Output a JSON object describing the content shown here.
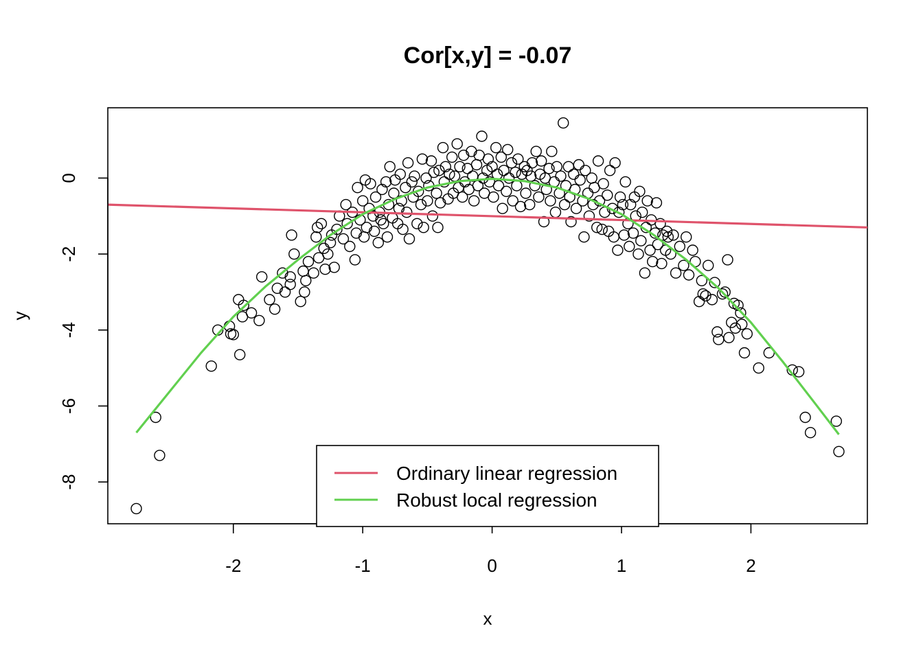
{
  "chart_data": {
    "type": "scatter",
    "title": "Cor[x,y] = -0.07",
    "xlabel": "x",
    "ylabel": "y",
    "xlim": [
      -2.97,
      2.9
    ],
    "ylim": [
      -9.1,
      1.85
    ],
    "xticks": [
      -2,
      -1,
      0,
      1,
      2
    ],
    "yticks": [
      0,
      -2,
      -4,
      -6,
      -8
    ],
    "xtick_labels": [
      "-2",
      "-1",
      "0",
      "1",
      "2"
    ],
    "ytick_labels": [
      "0",
      "-2",
      "-4",
      "-6",
      "-8"
    ],
    "grid": false,
    "legend": {
      "position": "bottom-center",
      "entries": [
        {
          "label": "Ordinary linear regression",
          "color": "#DF536B"
        },
        {
          "label": "Robust local regression",
          "color": "#61D04F"
        }
      ]
    },
    "points_color": "#000000",
    "series": [
      {
        "kind": "scatter",
        "points": [
          [
            -2.75,
            -8.7
          ],
          [
            -2.6,
            -6.3
          ],
          [
            -2.57,
            -7.3
          ],
          [
            -2.17,
            -4.95
          ],
          [
            -2.12,
            -4.0
          ],
          [
            -2.03,
            -3.9
          ],
          [
            -2.02,
            -4.1
          ],
          [
            -2.0,
            -4.12
          ],
          [
            -1.96,
            -3.2
          ],
          [
            -1.95,
            -4.65
          ],
          [
            -1.92,
            -3.35
          ],
          [
            -1.93,
            -3.65
          ],
          [
            -1.86,
            -3.55
          ],
          [
            -1.8,
            -3.75
          ],
          [
            -1.78,
            -2.6
          ],
          [
            -1.72,
            -3.2
          ],
          [
            -1.68,
            -3.45
          ],
          [
            -1.66,
            -2.9
          ],
          [
            -1.62,
            -2.5
          ],
          [
            -1.6,
            -3.0
          ],
          [
            -1.56,
            -2.6
          ],
          [
            -1.56,
            -2.8
          ],
          [
            -1.55,
            -1.5
          ],
          [
            -1.53,
            -2.0
          ],
          [
            -1.48,
            -3.25
          ],
          [
            -1.46,
            -2.45
          ],
          [
            -1.45,
            -3.0
          ],
          [
            -1.44,
            -2.7
          ],
          [
            -1.42,
            -2.2
          ],
          [
            -1.38,
            -2.5
          ],
          [
            -1.36,
            -1.55
          ],
          [
            -1.35,
            -1.3
          ],
          [
            -1.34,
            -2.1
          ],
          [
            -1.32,
            -1.2
          ],
          [
            -1.3,
            -1.85
          ],
          [
            -1.29,
            -2.4
          ],
          [
            -1.27,
            -2.0
          ],
          [
            -1.25,
            -1.7
          ],
          [
            -1.24,
            -1.5
          ],
          [
            -1.22,
            -2.35
          ],
          [
            -1.2,
            -1.35
          ],
          [
            -1.18,
            -1.0
          ],
          [
            -1.15,
            -1.6
          ],
          [
            -1.13,
            -0.7
          ],
          [
            -1.12,
            -1.2
          ],
          [
            -1.1,
            -1.8
          ],
          [
            -1.08,
            -0.9
          ],
          [
            -1.06,
            -2.15
          ],
          [
            -1.05,
            -1.45
          ],
          [
            -1.04,
            -0.25
          ],
          [
            -1.02,
            -1.1
          ],
          [
            -1.0,
            -0.6
          ],
          [
            -0.99,
            -1.55
          ],
          [
            -0.98,
            -0.05
          ],
          [
            -0.97,
            -1.3
          ],
          [
            -0.95,
            -0.8
          ],
          [
            -0.94,
            -0.15
          ],
          [
            -0.92,
            -1.0
          ],
          [
            -0.91,
            -1.4
          ],
          [
            -0.9,
            -0.5
          ],
          [
            -0.88,
            -1.7
          ],
          [
            -0.87,
            -0.9
          ],
          [
            -0.86,
            -1.1
          ],
          [
            -0.85,
            -0.3
          ],
          [
            -0.84,
            -1.2
          ],
          [
            -0.82,
            -0.1
          ],
          [
            -0.81,
            -1.55
          ],
          [
            -0.8,
            -0.7
          ],
          [
            -0.79,
            0.3
          ],
          [
            -0.77,
            -1.05
          ],
          [
            -0.76,
            -0.4
          ],
          [
            -0.75,
            -0.05
          ],
          [
            -0.73,
            -1.2
          ],
          [
            -0.72,
            -0.8
          ],
          [
            -0.71,
            0.1
          ],
          [
            -0.7,
            -0.6
          ],
          [
            -0.69,
            -1.35
          ],
          [
            -0.67,
            -0.25
          ],
          [
            -0.66,
            -0.9
          ],
          [
            -0.65,
            0.4
          ],
          [
            -0.64,
            -1.6
          ],
          [
            -0.62,
            -0.1
          ],
          [
            -0.61,
            -0.5
          ],
          [
            -0.6,
            0.05
          ],
          [
            -0.58,
            -1.2
          ],
          [
            -0.57,
            -0.35
          ],
          [
            -0.55,
            -0.7
          ],
          [
            -0.54,
            0.5
          ],
          [
            -0.53,
            -1.3
          ],
          [
            -0.51,
            0.0
          ],
          [
            -0.5,
            -0.6
          ],
          [
            -0.49,
            -0.2
          ],
          [
            -0.47,
            0.45
          ],
          [
            -0.46,
            -1.0
          ],
          [
            -0.45,
            0.15
          ],
          [
            -0.43,
            -0.4
          ],
          [
            -0.42,
            -1.3
          ],
          [
            -0.41,
            0.2
          ],
          [
            -0.4,
            -0.65
          ],
          [
            -0.38,
            0.8
          ],
          [
            -0.37,
            -0.1
          ],
          [
            -0.36,
            0.3
          ],
          [
            -0.34,
            -0.55
          ],
          [
            -0.33,
            0.1
          ],
          [
            -0.31,
            0.55
          ],
          [
            -0.3,
            -0.4
          ],
          [
            -0.29,
            0.05
          ],
          [
            -0.27,
            0.9
          ],
          [
            -0.26,
            -0.25
          ],
          [
            -0.25,
            0.3
          ],
          [
            -0.23,
            -0.5
          ],
          [
            -0.22,
            0.6
          ],
          [
            -0.21,
            -0.1
          ],
          [
            -0.19,
            0.25
          ],
          [
            -0.18,
            -0.3
          ],
          [
            -0.16,
            0.7
          ],
          [
            -0.15,
            0.05
          ],
          [
            -0.14,
            -0.6
          ],
          [
            -0.12,
            0.35
          ],
          [
            -0.11,
            -0.2
          ],
          [
            -0.1,
            0.6
          ],
          [
            -0.08,
            1.1
          ],
          [
            -0.07,
            0.0
          ],
          [
            -0.06,
            -0.4
          ],
          [
            -0.04,
            0.2
          ],
          [
            -0.03,
            0.5
          ],
          [
            -0.02,
            -0.1
          ],
          [
            0.0,
            0.3
          ],
          [
            0.01,
            -0.5
          ],
          [
            0.03,
            0.8
          ],
          [
            0.04,
            0.1
          ],
          [
            0.05,
            -0.2
          ],
          [
            0.07,
            0.55
          ],
          [
            0.08,
            -0.8
          ],
          [
            0.09,
            0.2
          ],
          [
            0.11,
            -0.35
          ],
          [
            0.12,
            0.75
          ],
          [
            0.13,
            0.0
          ],
          [
            0.15,
            0.4
          ],
          [
            0.16,
            -0.6
          ],
          [
            0.18,
            0.15
          ],
          [
            0.19,
            -0.2
          ],
          [
            0.2,
            0.5
          ],
          [
            0.22,
            -0.75
          ],
          [
            0.23,
            0.1
          ],
          [
            0.25,
            0.3
          ],
          [
            0.26,
            -0.4
          ],
          [
            0.27,
            0.2
          ],
          [
            0.29,
            -0.7
          ],
          [
            0.3,
            0.05
          ],
          [
            0.31,
            0.4
          ],
          [
            0.33,
            -0.2
          ],
          [
            0.34,
            0.7
          ],
          [
            0.36,
            -0.5
          ],
          [
            0.37,
            0.1
          ],
          [
            0.38,
            0.45
          ],
          [
            0.4,
            -1.15
          ],
          [
            0.41,
            0.0
          ],
          [
            0.42,
            -0.3
          ],
          [
            0.44,
            0.25
          ],
          [
            0.45,
            -0.6
          ],
          [
            0.46,
            0.7
          ],
          [
            0.48,
            -0.1
          ],
          [
            0.49,
            -0.9
          ],
          [
            0.5,
            0.3
          ],
          [
            0.52,
            -0.4
          ],
          [
            0.53,
            0.05
          ],
          [
            0.55,
            1.45
          ],
          [
            0.56,
            -0.7
          ],
          [
            0.57,
            -0.2
          ],
          [
            0.59,
            0.3
          ],
          [
            0.6,
            -0.5
          ],
          [
            0.61,
            -1.15
          ],
          [
            0.63,
            0.1
          ],
          [
            0.64,
            -0.3
          ],
          [
            0.65,
            -0.8
          ],
          [
            0.67,
            0.35
          ],
          [
            0.68,
            -0.05
          ],
          [
            0.7,
            -0.6
          ],
          [
            0.71,
            -1.55
          ],
          [
            0.72,
            0.2
          ],
          [
            0.74,
            -0.4
          ],
          [
            0.75,
            -1.0
          ],
          [
            0.77,
            0.0
          ],
          [
            0.78,
            -0.7
          ],
          [
            0.79,
            -0.25
          ],
          [
            0.81,
            -1.3
          ],
          [
            0.82,
            0.45
          ],
          [
            0.83,
            -0.6
          ],
          [
            0.85,
            -1.35
          ],
          [
            0.86,
            -0.15
          ],
          [
            0.87,
            -0.9
          ],
          [
            0.89,
            -0.45
          ],
          [
            0.9,
            -1.4
          ],
          [
            0.91,
            0.2
          ],
          [
            0.93,
            -0.8
          ],
          [
            0.94,
            -1.55
          ],
          [
            0.95,
            0.4
          ],
          [
            0.97,
            -1.9
          ],
          [
            0.98,
            -0.9
          ],
          [
            0.99,
            -0.5
          ],
          [
            1.01,
            -0.7
          ],
          [
            1.02,
            -1.5
          ],
          [
            1.03,
            -0.1
          ],
          [
            1.05,
            -1.2
          ],
          [
            1.06,
            -1.8
          ],
          [
            1.07,
            -0.7
          ],
          [
            1.09,
            -1.45
          ],
          [
            1.1,
            -0.5
          ],
          [
            1.11,
            -1.0
          ],
          [
            1.13,
            -2.0
          ],
          [
            1.14,
            -0.35
          ],
          [
            1.15,
            -1.65
          ],
          [
            1.16,
            -0.9
          ],
          [
            1.18,
            -2.5
          ],
          [
            1.19,
            -1.3
          ],
          [
            1.2,
            -0.6
          ],
          [
            1.22,
            -1.9
          ],
          [
            1.23,
            -1.1
          ],
          [
            1.24,
            -2.2
          ],
          [
            1.26,
            -1.45
          ],
          [
            1.27,
            -0.65
          ],
          [
            1.28,
            -1.75
          ],
          [
            1.3,
            -1.2
          ],
          [
            1.31,
            -2.25
          ],
          [
            1.32,
            -1.5
          ],
          [
            1.34,
            -1.9
          ],
          [
            1.35,
            -1.4
          ],
          [
            1.36,
            -1.55
          ],
          [
            1.38,
            -2.0
          ],
          [
            1.4,
            -1.5
          ],
          [
            1.42,
            -2.5
          ],
          [
            1.45,
            -1.8
          ],
          [
            1.48,
            -2.3
          ],
          [
            1.5,
            -1.55
          ],
          [
            1.52,
            -2.55
          ],
          [
            1.55,
            -1.9
          ],
          [
            1.57,
            -2.2
          ],
          [
            1.6,
            -3.25
          ],
          [
            1.62,
            -2.7
          ],
          [
            1.63,
            -3.05
          ],
          [
            1.65,
            -3.1
          ],
          [
            1.67,
            -2.3
          ],
          [
            1.7,
            -3.2
          ],
          [
            1.72,
            -2.75
          ],
          [
            1.74,
            -4.05
          ],
          [
            1.75,
            -4.25
          ],
          [
            1.78,
            -3.05
          ],
          [
            1.8,
            -3.0
          ],
          [
            1.82,
            -2.15
          ],
          [
            1.83,
            -4.2
          ],
          [
            1.85,
            -3.8
          ],
          [
            1.87,
            -3.3
          ],
          [
            1.88,
            -3.95
          ],
          [
            1.9,
            -3.35
          ],
          [
            1.92,
            -3.55
          ],
          [
            1.93,
            -3.85
          ],
          [
            1.95,
            -4.6
          ],
          [
            1.97,
            -4.1
          ],
          [
            2.06,
            -5.0
          ],
          [
            2.14,
            -4.6
          ],
          [
            2.32,
            -5.05
          ],
          [
            2.37,
            -5.1
          ],
          [
            2.42,
            -6.3
          ],
          [
            2.46,
            -6.7
          ],
          [
            2.66,
            -6.4
          ],
          [
            2.68,
            -7.2
          ]
        ]
      },
      {
        "kind": "line",
        "name": "Ordinary linear regression",
        "color": "#DF536B",
        "x": [
          -2.97,
          2.9
        ],
        "y": [
          -0.7,
          -1.3
        ]
      },
      {
        "kind": "line",
        "name": "Robust local regression",
        "color": "#61D04F",
        "x": [
          -2.75,
          -2.5,
          -2.25,
          -2.0,
          -1.75,
          -1.5,
          -1.25,
          -1.0,
          -0.75,
          -0.5,
          -0.25,
          0.0,
          0.25,
          0.5,
          0.75,
          1.0,
          1.25,
          1.5,
          1.75,
          2.0,
          2.25,
          2.5,
          2.68
        ],
        "y": [
          -6.7,
          -5.65,
          -4.6,
          -3.65,
          -2.85,
          -2.15,
          -1.5,
          -0.95,
          -0.55,
          -0.25,
          -0.08,
          -0.02,
          -0.08,
          -0.25,
          -0.55,
          -0.95,
          -1.5,
          -2.15,
          -2.9,
          -3.8,
          -4.85,
          -5.95,
          -6.75
        ]
      }
    ]
  }
}
